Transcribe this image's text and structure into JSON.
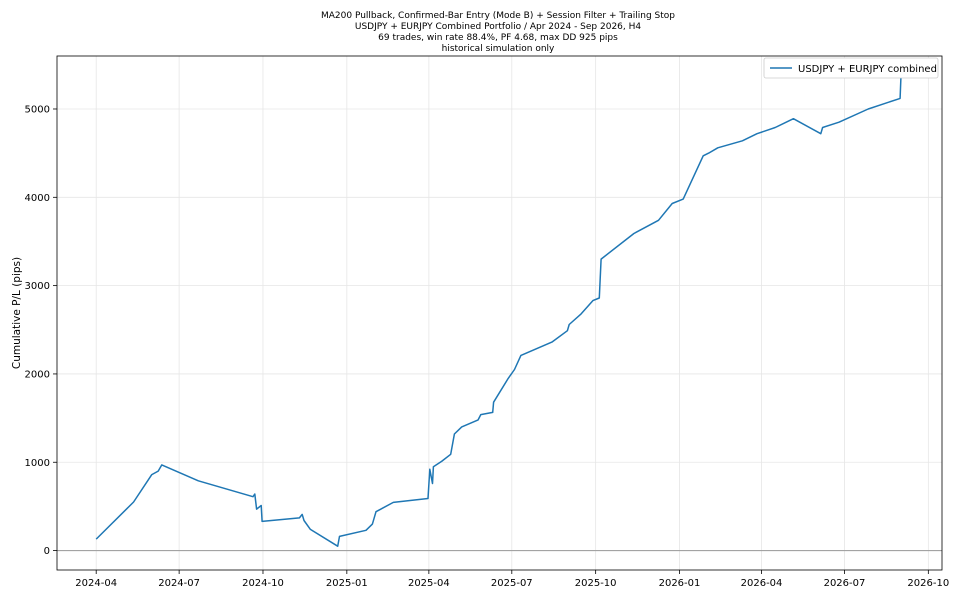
{
  "chart_data": {
    "type": "line",
    "title_lines": [
      "MA200 Pullback, Confirmed-Bar Entry (Mode B) + Session Filter + Trailing Stop",
      "USDJPY + EURJPY Combined Portfolio / Apr 2024 - Sep 2026, H4",
      "69 trades, win rate 88.4%, PF 4.68, max DD 925 pips",
      "historical simulation only"
    ],
    "xlabel": "",
    "ylabel": "Cumulative P/L (pips)",
    "x_ticks": [
      "2024-04",
      "2024-07",
      "2024-10",
      "2025-01",
      "2025-04",
      "2025-07",
      "2025-10",
      "2026-01",
      "2026-04",
      "2026-07",
      "2026-10"
    ],
    "y_ticks": [
      0,
      1000,
      2000,
      3000,
      4000,
      5000
    ],
    "xlim": [
      "2024-02-18",
      "2026-10-16"
    ],
    "ylim": [
      -220,
      5600
    ],
    "grid": true,
    "zero_line": true,
    "legend_position": "top-right",
    "series": [
      {
        "name": "USDJPY + EURJPY combined",
        "color": "#1f77b4",
        "points": [
          [
            "2024-04-01",
            130
          ],
          [
            "2024-05-12",
            550
          ],
          [
            "2024-06-01",
            860
          ],
          [
            "2024-06-08",
            900
          ],
          [
            "2024-06-12",
            970
          ],
          [
            "2024-07-22",
            790
          ],
          [
            "2024-09-20",
            610
          ],
          [
            "2024-09-22",
            640
          ],
          [
            "2024-09-24",
            470
          ],
          [
            "2024-09-29",
            510
          ],
          [
            "2024-09-30",
            330
          ],
          [
            "2024-11-10",
            370
          ],
          [
            "2024-11-13",
            410
          ],
          [
            "2024-11-15",
            340
          ],
          [
            "2024-11-22",
            240
          ],
          [
            "2024-12-22",
            50
          ],
          [
            "2024-12-24",
            160
          ],
          [
            "2025-01-22",
            230
          ],
          [
            "2025-01-29",
            300
          ],
          [
            "2025-02-02",
            440
          ],
          [
            "2025-02-21",
            545
          ],
          [
            "2025-03-31",
            590
          ],
          [
            "2025-04-02",
            920
          ],
          [
            "2025-04-05",
            760
          ],
          [
            "2025-04-06",
            950
          ],
          [
            "2025-04-15",
            1010
          ],
          [
            "2025-04-25",
            1090
          ],
          [
            "2025-04-29",
            1320
          ],
          [
            "2025-05-07",
            1400
          ],
          [
            "2025-05-25",
            1480
          ],
          [
            "2025-05-28",
            1540
          ],
          [
            "2025-06-10",
            1565
          ],
          [
            "2025-06-11",
            1680
          ],
          [
            "2025-06-27",
            1950
          ],
          [
            "2025-07-04",
            2050
          ],
          [
            "2025-07-11",
            2210
          ],
          [
            "2025-08-14",
            2360
          ],
          [
            "2025-08-31",
            2490
          ],
          [
            "2025-09-02",
            2560
          ],
          [
            "2025-09-15",
            2680
          ],
          [
            "2025-09-28",
            2830
          ],
          [
            "2025-10-05",
            2860
          ],
          [
            "2025-10-07",
            3300
          ],
          [
            "2025-11-12",
            3590
          ],
          [
            "2025-12-09",
            3740
          ],
          [
            "2025-12-24",
            3930
          ],
          [
            "2026-01-05",
            3980
          ],
          [
            "2026-01-27",
            4470
          ],
          [
            "2026-02-02",
            4500
          ],
          [
            "2026-02-12",
            4560
          ],
          [
            "2026-03-11",
            4640
          ],
          [
            "2026-03-27",
            4720
          ],
          [
            "2026-04-16",
            4790
          ],
          [
            "2026-05-06",
            4890
          ],
          [
            "2026-06-05",
            4720
          ],
          [
            "2026-06-07",
            4790
          ],
          [
            "2026-06-25",
            4850
          ],
          [
            "2026-07-27",
            5000
          ],
          [
            "2026-08-31",
            5120
          ],
          [
            "2026-09-01",
            5380
          ]
        ]
      }
    ]
  }
}
